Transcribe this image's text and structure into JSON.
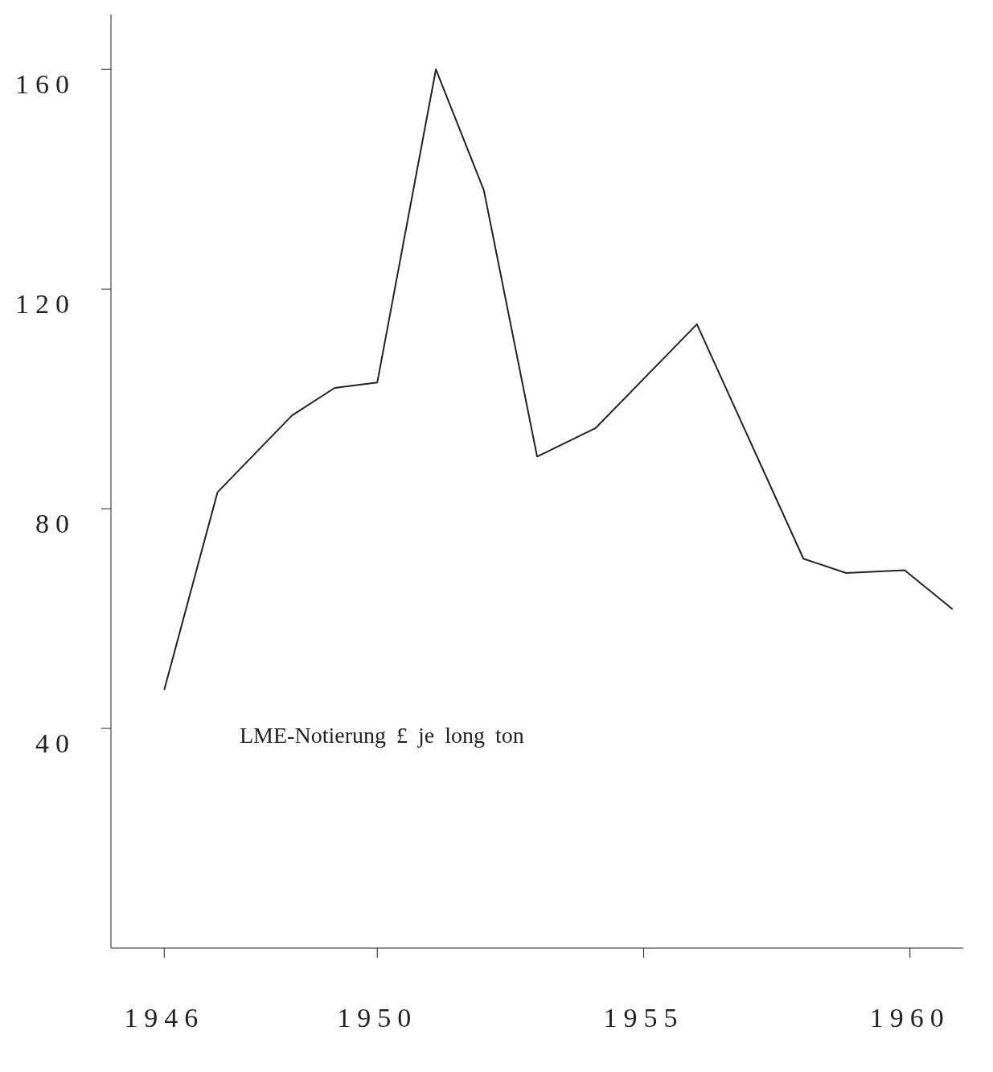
{
  "chart_data": {
    "type": "line",
    "annotations": [
      "LME-Notierung £ je long ton"
    ],
    "x": [
      1946,
      1947,
      1948.4,
      1949.2,
      1950,
      1951.1,
      1952,
      1953,
      1954.1,
      1956,
      1958,
      1958.8,
      1959.9,
      1960.8
    ],
    "series": [
      {
        "color": "#222222",
        "values": [
          47,
          83,
          97,
          102,
          103,
          160,
          138,
          89.5,
          94.7,
          113.6,
          70.9,
          68.3,
          68.8,
          61.7
        ]
      }
    ],
    "xlim": [
      1945,
      1961
    ],
    "xticks": [
      1946,
      1950,
      1955,
      1960
    ],
    "ylim": [
      0,
      170
    ],
    "yticks": [
      40,
      80,
      120,
      160
    ],
    "grid": false,
    "legend": false,
    "marker": "none",
    "line_style": "solid"
  }
}
